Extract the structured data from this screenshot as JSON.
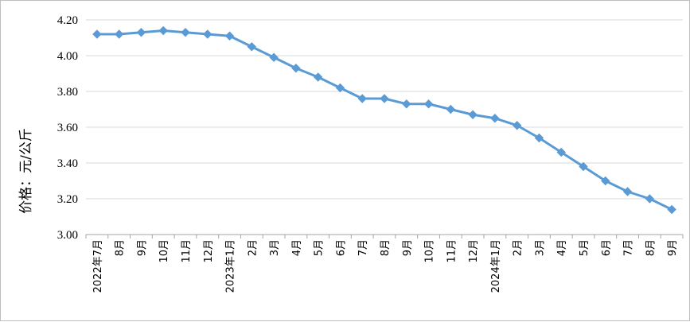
{
  "chart_data": {
    "type": "line",
    "title": "",
    "xlabel": "",
    "ylabel": "价格：元/公斤",
    "ylim": [
      3.0,
      4.2
    ],
    "yticks": [
      "3.00",
      "3.20",
      "3.40",
      "3.60",
      "3.80",
      "4.00",
      "4.20"
    ],
    "grid": true,
    "legend": "none",
    "categories": [
      "2022年7月",
      "8月",
      "9月",
      "10月",
      "11月",
      "12月",
      "2023年1月",
      "2月",
      "3月",
      "4月",
      "5月",
      "6月",
      "7月",
      "8月",
      "9月",
      "10月",
      "11月",
      "12月",
      "2024年1月",
      "2月",
      "3月",
      "4月",
      "5月",
      "6月",
      "7月",
      "8月",
      "9月"
    ],
    "series": [
      {
        "values": [
          4.12,
          4.12,
          4.13,
          4.14,
          4.13,
          4.12,
          4.11,
          4.05,
          3.99,
          3.93,
          3.88,
          3.82,
          3.76,
          3.76,
          3.73,
          3.73,
          3.7,
          3.67,
          3.65,
          3.61,
          3.54,
          3.46,
          3.38,
          3.3,
          3.24,
          3.2,
          3.14
        ]
      }
    ],
    "colors": {
      "line": "#5b9bd5",
      "grid": "#d9d9d9",
      "axis": "#a6a6a6"
    }
  }
}
